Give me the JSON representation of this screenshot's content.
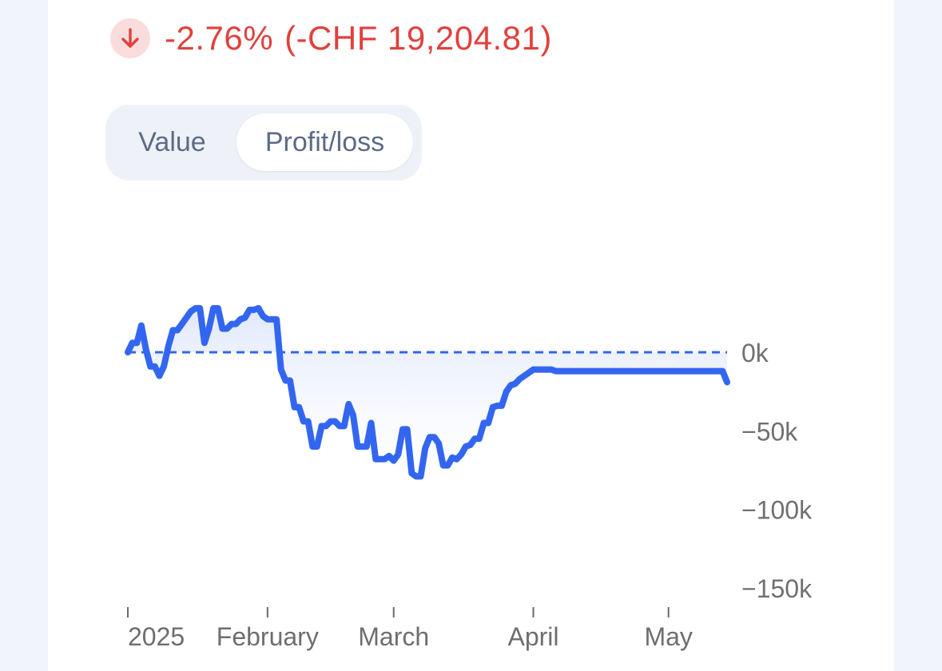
{
  "summary": {
    "direction_icon": "arrow-down-icon",
    "percent_change": "-2.76%",
    "amount_change": "(-CHF 19,204.81)",
    "negative_color": "#e0413d"
  },
  "toggle": {
    "options": [
      "Value",
      "Profit/loss"
    ],
    "selected": "Profit/loss"
  },
  "chart_data": {
    "type": "area",
    "title": "",
    "xlabel": "",
    "ylabel": "",
    "series_color": "#3366f0",
    "baseline": 0,
    "y_ticks": [
      0,
      -50000,
      -100000,
      -150000
    ],
    "y_tick_labels": [
      "0k",
      "−50k",
      "−100k",
      "−150k"
    ],
    "ylim": [
      -152000,
      31000
    ],
    "xlim": [
      "2025-01-01",
      "2025-05-14"
    ],
    "x_ticks": [
      "2025-01-01",
      "2025-02-01",
      "2025-03-01",
      "2025-04-01",
      "2025-05-01"
    ],
    "x_tick_labels": [
      "2025",
      "February",
      "March",
      "April",
      "May"
    ],
    "x": [
      "2025-01-01",
      "2025-01-02",
      "2025-01-03",
      "2025-01-04",
      "2025-01-05",
      "2025-01-06",
      "2025-01-07",
      "2025-01-08",
      "2025-01-09",
      "2025-01-10",
      "2025-01-11",
      "2025-01-12",
      "2025-01-13",
      "2025-01-14",
      "2025-01-15",
      "2025-01-16",
      "2025-01-17",
      "2025-01-18",
      "2025-01-19",
      "2025-01-20",
      "2025-01-21",
      "2025-01-22",
      "2025-01-23",
      "2025-01-24",
      "2025-01-25",
      "2025-01-26",
      "2025-01-27",
      "2025-01-28",
      "2025-01-29",
      "2025-01-30",
      "2025-01-31",
      "2025-02-01",
      "2025-02-02",
      "2025-02-03",
      "2025-02-04",
      "2025-02-05",
      "2025-02-06",
      "2025-02-07",
      "2025-02-08",
      "2025-02-09",
      "2025-02-10",
      "2025-02-11",
      "2025-02-12",
      "2025-02-13",
      "2025-02-14",
      "2025-02-15",
      "2025-02-16",
      "2025-02-17",
      "2025-02-18",
      "2025-02-19",
      "2025-02-20",
      "2025-02-21",
      "2025-02-22",
      "2025-02-23",
      "2025-02-24",
      "2025-02-25",
      "2025-02-26",
      "2025-02-27",
      "2025-02-28",
      "2025-03-01",
      "2025-03-02",
      "2025-03-03",
      "2025-03-04",
      "2025-03-05",
      "2025-03-06",
      "2025-03-07",
      "2025-03-08",
      "2025-03-09",
      "2025-03-10",
      "2025-03-11",
      "2025-03-12",
      "2025-03-13",
      "2025-03-14",
      "2025-03-15",
      "2025-03-16",
      "2025-03-17",
      "2025-03-18",
      "2025-03-19",
      "2025-03-20",
      "2025-03-21",
      "2025-03-22",
      "2025-03-23",
      "2025-03-24",
      "2025-03-25",
      "2025-03-26",
      "2025-03-27",
      "2025-03-28",
      "2025-03-29",
      "2025-03-30",
      "2025-03-31",
      "2025-04-01",
      "2025-04-02",
      "2025-04-03",
      "2025-04-04",
      "2025-04-05",
      "2025-04-06",
      "2025-04-07",
      "2025-04-08",
      "2025-04-09",
      "2025-04-10",
      "2025-04-11",
      "2025-04-12",
      "2025-04-13",
      "2025-04-14",
      "2025-04-15",
      "2025-04-16",
      "2025-04-17",
      "2025-04-18",
      "2025-04-19",
      "2025-04-20",
      "2025-04-21",
      "2025-04-22",
      "2025-04-23",
      "2025-04-24",
      "2025-04-25",
      "2025-04-26",
      "2025-04-27",
      "2025-04-28",
      "2025-04-29",
      "2025-04-30",
      "2025-05-01",
      "2025-05-02",
      "2025-05-03",
      "2025-05-04",
      "2025-05-05",
      "2025-05-06",
      "2025-05-07",
      "2025-05-08",
      "2025-05-09",
      "2025-05-10",
      "2025-05-11",
      "2025-05-12",
      "2025-05-13",
      "2025-05-14"
    ],
    "values": [
      0,
      6000,
      6000,
      17000,
      2000,
      -9000,
      -9000,
      -15000,
      -9000,
      4000,
      14000,
      14000,
      18000,
      22000,
      26000,
      28000,
      28000,
      6000,
      15000,
      28000,
      28000,
      15000,
      15000,
      18000,
      18000,
      21000,
      22000,
      27000,
      27000,
      28000,
      23000,
      21000,
      21000,
      21000,
      -11000,
      -18000,
      -18000,
      -35000,
      -35000,
      -44000,
      -44000,
      -60000,
      -60000,
      -47000,
      -47000,
      -44000,
      -44000,
      -47000,
      -47000,
      -33000,
      -40000,
      -60000,
      -60000,
      -60000,
      -45000,
      -68000,
      -68000,
      -68000,
      -66000,
      -69000,
      -65000,
      -49000,
      -49000,
      -77000,
      -79000,
      -79000,
      -61000,
      -54000,
      -54000,
      -58000,
      -72000,
      -72000,
      -67000,
      -68000,
      -65000,
      -60000,
      -59000,
      -55000,
      -55000,
      -45000,
      -45000,
      -35000,
      -34000,
      -34000,
      -25000,
      -21000,
      -20000,
      -17000,
      -15000,
      -13000,
      -11000,
      -11000,
      -11000,
      -11000,
      -11000,
      -12000,
      -12000,
      -12000,
      -12000,
      -12000,
      -12000,
      -12000,
      -12000,
      -12000,
      -12000,
      -12000,
      -12000,
      -12000,
      -12000,
      -12000,
      -12000,
      -12000,
      -12000,
      -12000,
      -12000,
      -12000,
      -12000,
      -12000,
      -12000,
      -12000,
      -12000,
      -12000,
      -12000,
      -12000,
      -12000,
      -12000,
      -12000,
      -12000,
      -12000,
      -12000,
      -12000,
      -12000,
      -12000,
      -19000
    ]
  }
}
